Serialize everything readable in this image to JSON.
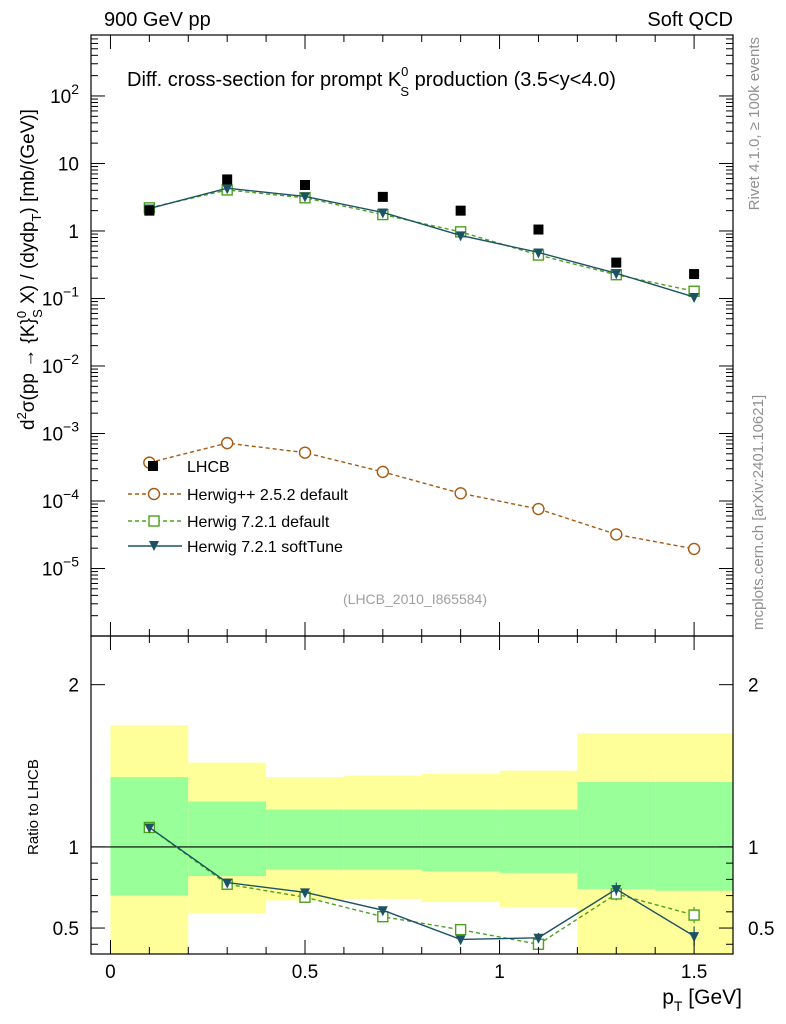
{
  "header": {
    "left": "900 GeV pp",
    "right": "Soft QCD"
  },
  "side_labels": {
    "rivet": "Rivet 4.1.0, ≥ 100k events",
    "mcplots": "mcplots.cern.ch [arXiv:2401.10621]"
  },
  "analysis_id": "(LHCB_2010_I865584)",
  "colors": {
    "lhcb": "#000000",
    "herwigpp": "#a65a10",
    "herwig721": "#4ca01e",
    "softtune": "#1c5364",
    "band_inner": "#99ff99",
    "band_outer": "#ffff99"
  },
  "chart_data": [
    {
      "type": "scatter",
      "title": "Diff. cross-section for prompt K",
      "title_sup": "0",
      "title_sub": "S",
      "title_tail": " production (3.5<y<4.0)",
      "ylabel": "d²σ(pp → {K}⁰ₛ X) / (dydpₜ) [mb/(GeV)]",
      "xlabel": "p_T [GeV]",
      "yscale": "log",
      "ylim": [
        1e-06,
        800
      ],
      "xlim": [
        -0.05,
        1.6
      ],
      "y_ticks": [
        {
          "value": 1e-05,
          "base": "10",
          "exp": "−5"
        },
        {
          "value": 0.0001,
          "base": "10",
          "exp": "−4"
        },
        {
          "value": 0.001,
          "base": "10",
          "exp": "−3"
        },
        {
          "value": 0.01,
          "base": "10",
          "exp": "−2"
        },
        {
          "value": 0.1,
          "base": "10",
          "exp": "−1"
        },
        {
          "value": 1,
          "base": "1",
          "exp": ""
        },
        {
          "value": 10,
          "base": "10",
          "exp": ""
        },
        {
          "value": 100,
          "base": "10",
          "exp": "2"
        }
      ],
      "x": [
        0.1,
        0.3,
        0.5,
        0.7,
        0.9,
        1.1,
        1.3,
        1.5
      ],
      "series": [
        {
          "name": "LHCB",
          "style": "data",
          "values": [
            2.0,
            5.8,
            4.8,
            3.2,
            2.0,
            1.05,
            0.34,
            0.23
          ]
        },
        {
          "name": "Herwig++ 2.5.2 default",
          "style": "dash-circle",
          "values": [
            0.00037,
            0.00072,
            0.00052,
            0.00027,
            0.00013,
            7.6e-05,
            3.2e-05,
            1.95e-05
          ]
        },
        {
          "name": "Herwig 7.2.1 default",
          "style": "dash-square",
          "values": [
            2.2,
            4.05,
            3.1,
            1.75,
            0.97,
            0.44,
            0.225,
            0.128
          ]
        },
        {
          "name": "Herwig 7.2.1 softTune",
          "style": "solid-triangle",
          "values": [
            2.15,
            4.3,
            3.25,
            1.88,
            0.86,
            0.48,
            0.236,
            0.105
          ]
        }
      ]
    },
    {
      "type": "scatter",
      "ylabel": "Ratio to LHCB",
      "xlabel": "p_T [GeV]",
      "ylim": [
        0.34,
        2.3
      ],
      "xlim": [
        -0.05,
        1.6
      ],
      "y_ticks": [
        0.5,
        1,
        2
      ],
      "y_tick_labels": [
        "0.5",
        "1",
        "2"
      ],
      "x_ticks": [
        0,
        0.5,
        1,
        1.5
      ],
      "x_tick_labels": [
        "0",
        "0.5",
        "1",
        "1.5"
      ],
      "reference_line": 1.0,
      "bins": [
        [
          0.0,
          0.2
        ],
        [
          0.2,
          0.4
        ],
        [
          0.4,
          0.6
        ],
        [
          0.6,
          0.8
        ],
        [
          0.8,
          1.0
        ],
        [
          1.0,
          1.2
        ],
        [
          1.2,
          1.4
        ],
        [
          1.4,
          1.6
        ]
      ],
      "band_inner": [
        [
          0.7,
          1.43
        ],
        [
          0.82,
          1.28
        ],
        [
          0.86,
          1.23
        ],
        [
          0.86,
          1.23
        ],
        [
          0.85,
          1.23
        ],
        [
          0.84,
          1.23
        ],
        [
          0.74,
          1.4
        ],
        [
          0.73,
          1.4
        ]
      ],
      "band_outer": [
        [
          0.33,
          1.75
        ],
        [
          0.59,
          1.52
        ],
        [
          0.67,
          1.43
        ],
        [
          0.68,
          1.44
        ],
        [
          0.66,
          1.45
        ],
        [
          0.63,
          1.47
        ],
        [
          0.33,
          1.7
        ],
        [
          0.33,
          1.7
        ]
      ],
      "x": [
        0.1,
        0.3,
        0.5,
        0.7,
        0.9,
        1.1,
        1.3,
        1.5
      ],
      "series": [
        {
          "name": "Herwig 7.2.1 default",
          "style": "dash-square",
          "values": [
            1.12,
            0.77,
            0.69,
            0.57,
            0.49,
            0.4,
            0.71,
            0.58
          ],
          "errors": [
            0,
            0,
            0,
            0,
            0,
            0,
            0.04,
            0.05
          ]
        },
        {
          "name": "Herwig 7.2.1 softTune",
          "style": "solid-triangle",
          "values": [
            1.12,
            0.78,
            0.72,
            0.61,
            0.43,
            0.44,
            0.74,
            0.45
          ],
          "errors": [
            0,
            0,
            0,
            0,
            0.02,
            0.03,
            0.04,
            0.06
          ]
        }
      ]
    }
  ]
}
